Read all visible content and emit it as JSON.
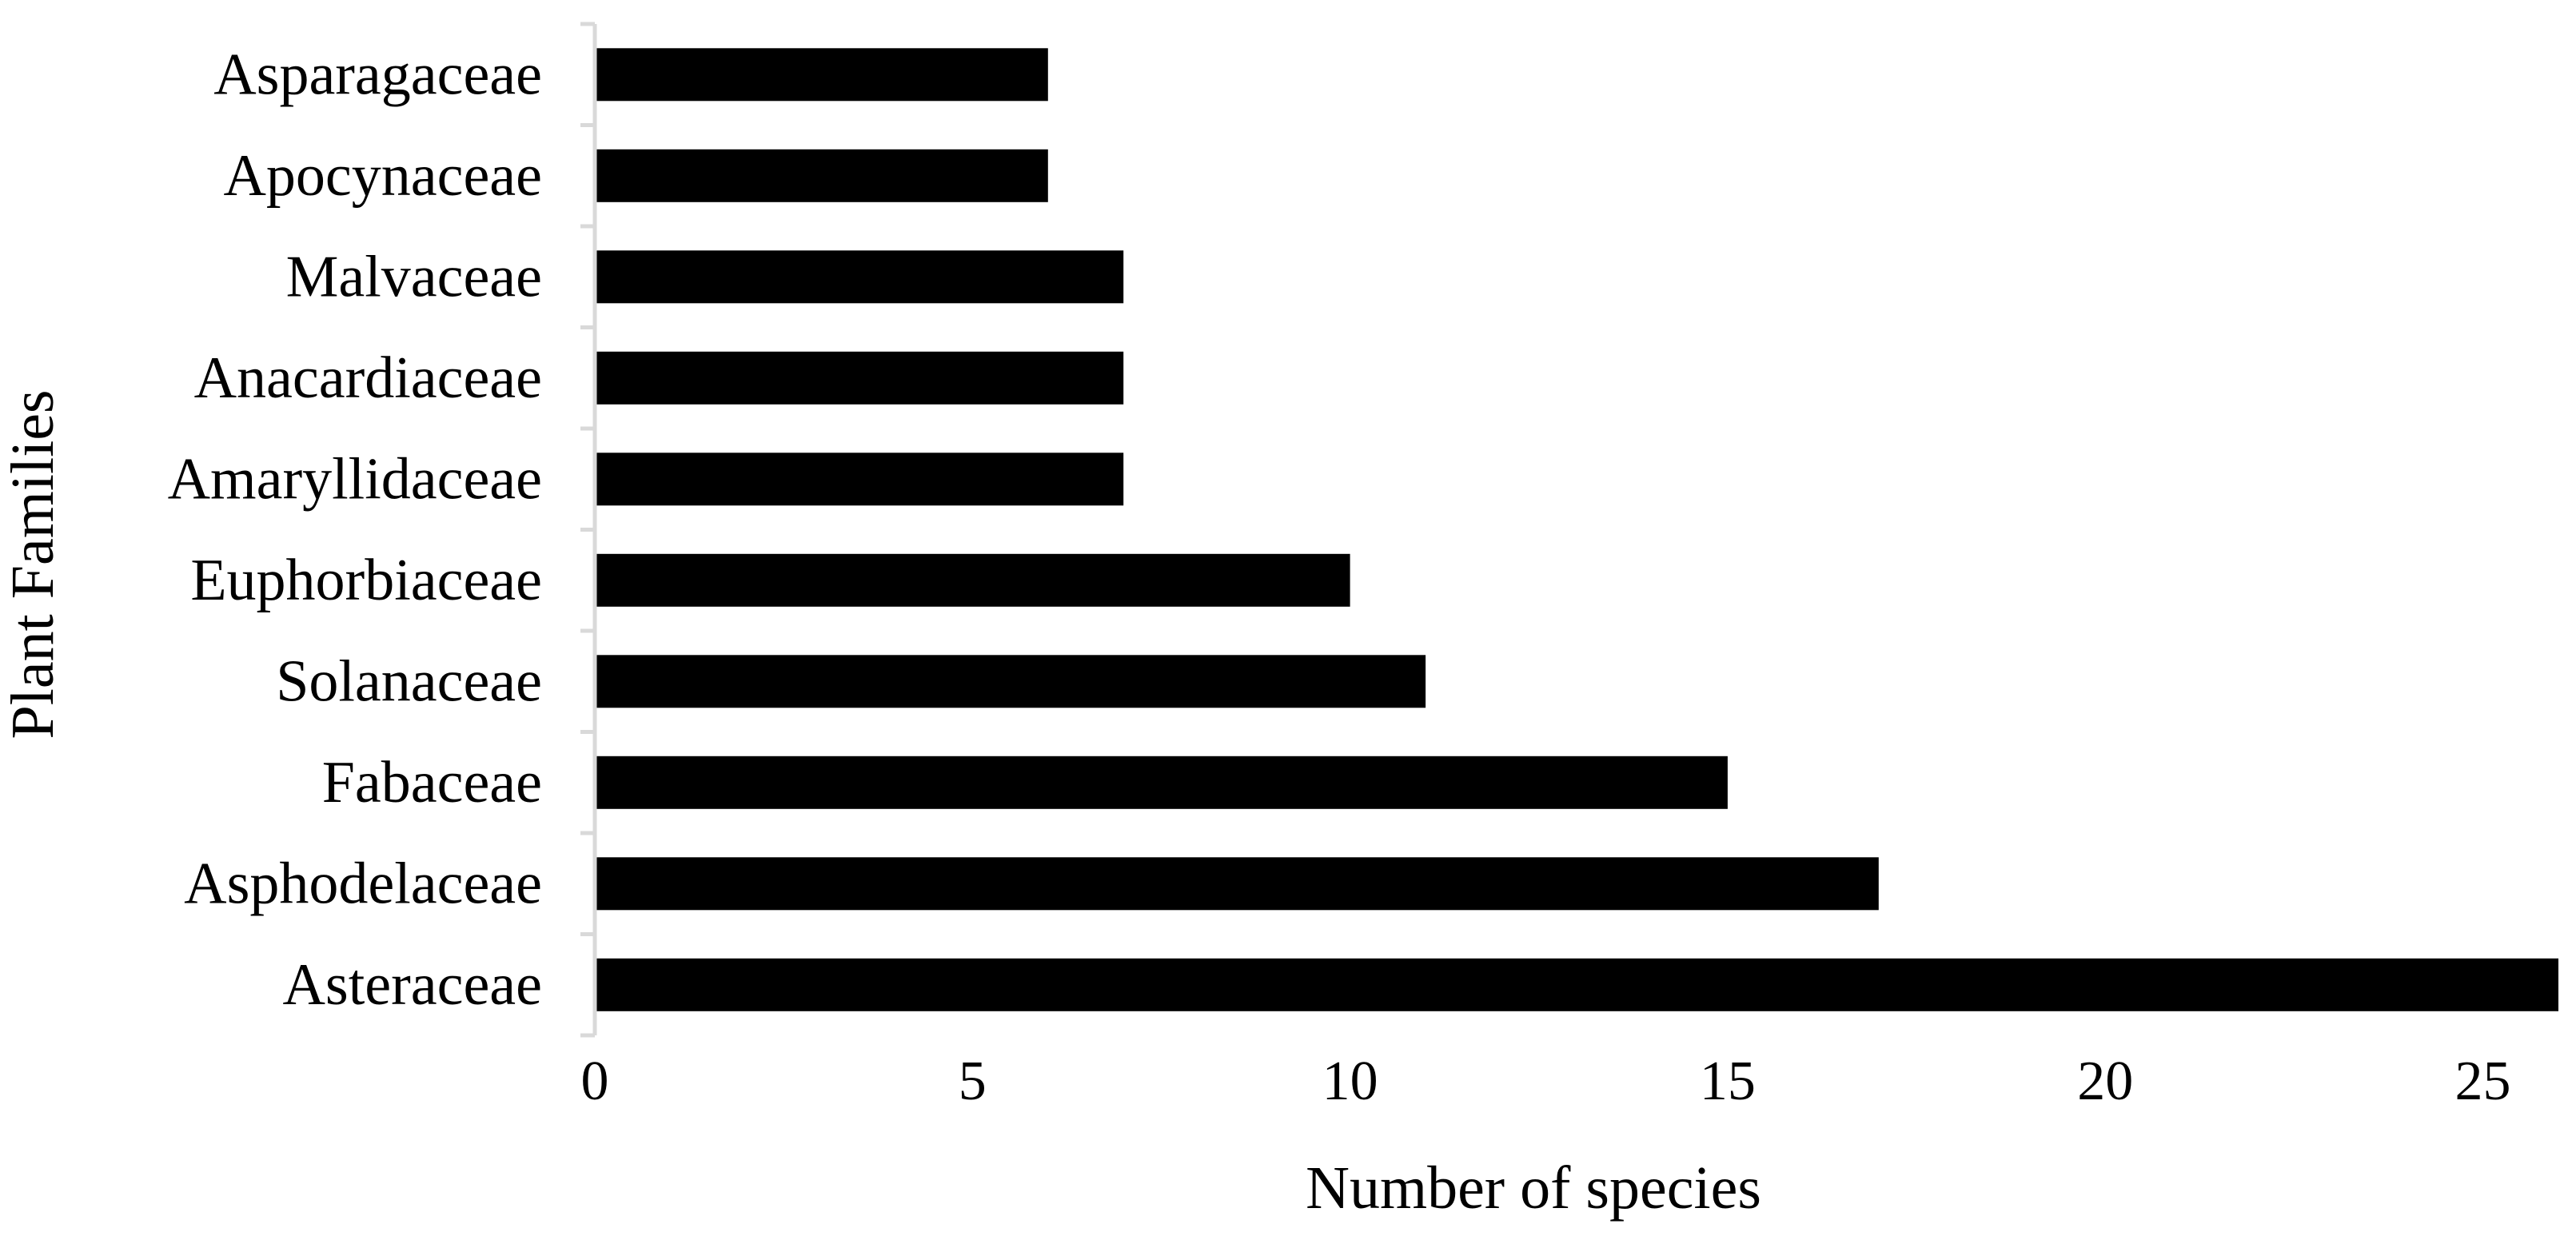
{
  "chart_data": {
    "type": "bar",
    "orientation": "horizontal",
    "categories": [
      "Asparagaceae",
      "Apocynaceae",
      "Malvaceae",
      "Anacardiaceae",
      "Amaryllidaceae",
      "Euphorbiaceae",
      "Solanaceae",
      "Fabaceae",
      "Asphodelaceae",
      "Asteraceae"
    ],
    "values": [
      6,
      6,
      7,
      7,
      7,
      10,
      11,
      15,
      17,
      26
    ],
    "title": "",
    "xlabel": "Number of species",
    "ylabel": "Plant Families",
    "xlim": [
      0,
      26
    ],
    "xticks": [
      "0",
      "5",
      "10",
      "15",
      "20",
      "25"
    ],
    "grid": false,
    "legend": "none",
    "bar_color": "#000000",
    "axis_color": "#d9d9d9"
  }
}
